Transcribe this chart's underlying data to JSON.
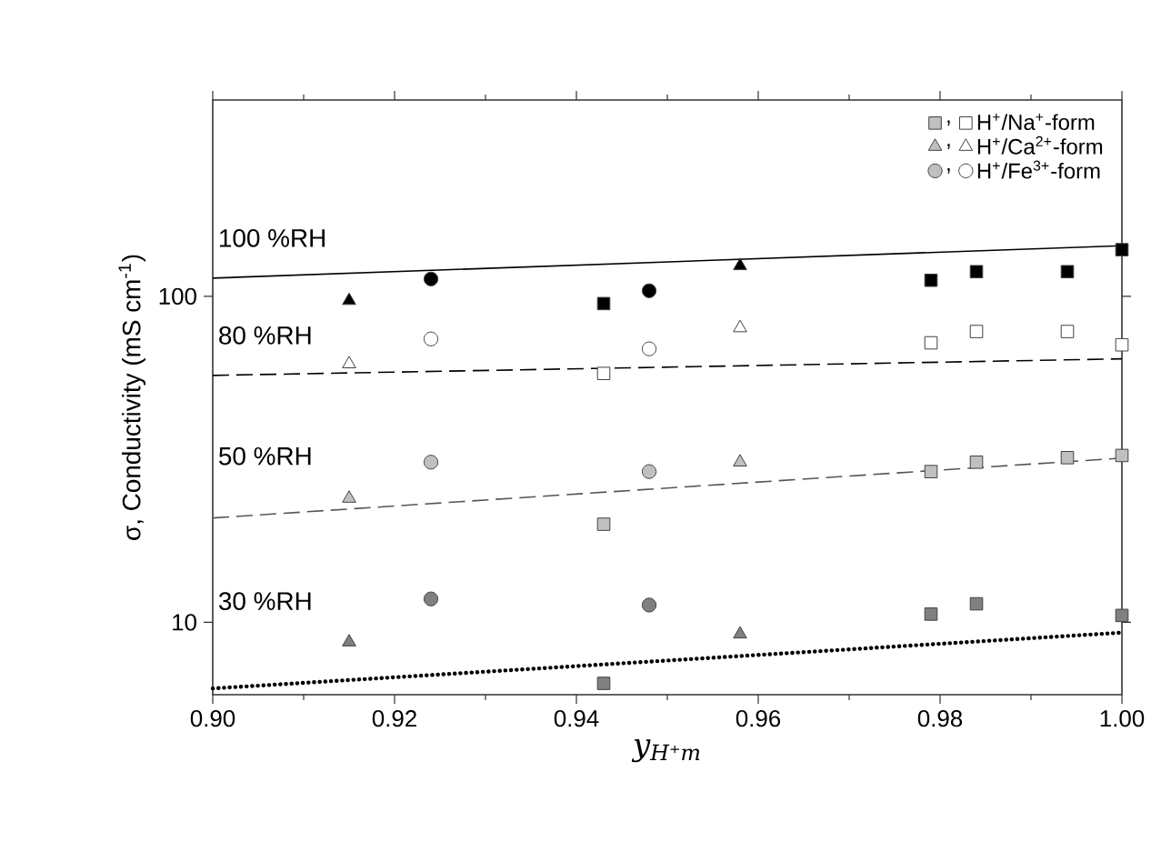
{
  "chart_data": {
    "type": "scatter",
    "xlabel": "y$_{H⁺m}$",
    "ylabel": "σ, Conductivity (mS cm$^{-1}$)",
    "xlim": [
      0.9,
      1.0
    ],
    "ylim": [
      6,
      400
    ],
    "log": "y",
    "legend": "top right",
    "grid": false,
    "xticks": [
      {
        "value": 0.9,
        "label": "0.90"
      },
      {
        "value": 0.92,
        "label": "0.92"
      },
      {
        "value": 0.94,
        "label": "0.94"
      },
      {
        "value": 0.96,
        "label": "0.96"
      },
      {
        "value": 0.98,
        "label": "0.98"
      },
      {
        "value": 1.0,
        "label": "1.00"
      }
    ],
    "yticks": [
      10,
      100
    ],
    "annotations": [
      "100 %RH",
      "80 %RH",
      "50 %RH",
      "30 %RH"
    ],
    "series": [
      {
        "color": "#000000",
        "marker": "square",
        "x": [
          0.943,
          0.979,
          0.984,
          0.994,
          1.0
        ],
        "values": [
          95,
          112,
          119,
          119,
          139
        ]
      },
      {
        "name": ",",
        "color": "#c0c0c0",
        "marker": "square",
        "x": [
          0.943,
          0.979,
          0.984,
          0.994,
          1.0
        ],
        "values": [
          20,
          29,
          31,
          32,
          32.5
        ]
      },
      {
        "name": "H$^{+}$/Na$^{+}$-form",
        "color": "#ffffff",
        "marker": "square",
        "x": [
          0.943,
          0.979,
          0.984,
          0.994,
          1.0
        ],
        "values": [
          58,
          72,
          78,
          78,
          71
        ]
      },
      {
        "color": "#808080",
        "marker": "square",
        "x": [
          0.943,
          0.979,
          0.984,
          1.0
        ],
        "values": [
          6.5,
          10.6,
          11.4,
          10.5
        ]
      },
      {
        "color": "#000000",
        "marker": "triangle",
        "x": [
          0.915,
          0.958
        ],
        "values": [
          97,
          124
        ]
      },
      {
        "name": ",",
        "color": "#c0c0c0",
        "marker": "triangle",
        "x": [
          0.915,
          0.958
        ],
        "values": [
          24,
          31
        ]
      },
      {
        "name": "H$^{+}$/Ca$^{2+}$-form",
        "color": "#ffffff",
        "marker": "triangle",
        "x": [
          0.915,
          0.958
        ],
        "values": [
          62,
          80
        ]
      },
      {
        "color": "#808080",
        "marker": "triangle",
        "x": [
          0.915,
          0.958
        ],
        "values": [
          8.7,
          9.2
        ]
      },
      {
        "color": "#000000",
        "marker": "circle",
        "x": [
          0.924,
          0.948
        ],
        "values": [
          113,
          104
        ]
      },
      {
        "name": ",",
        "color": "#c0c0c0",
        "marker": "circle",
        "x": [
          0.924,
          0.948
        ],
        "values": [
          31,
          29
        ]
      },
      {
        "name": "H$^{+}$/Fe$^{3+}$-form",
        "color": "#ffffff",
        "marker": "circle",
        "x": [
          0.924,
          0.948
        ],
        "values": [
          74,
          69
        ]
      },
      {
        "color": "#808080",
        "marker": "circle",
        "x": [
          0.924,
          0.948
        ],
        "values": [
          11.8,
          11.3
        ]
      },
      {
        "type": "line",
        "color": "#000000",
        "line_style": "solid",
        "marker": "none",
        "x": [
          0.9,
          1.0
        ],
        "values": [
          113.7,
          143
        ]
      },
      {
        "type": "line",
        "color": "#000000",
        "line_style": "dashed",
        "marker": "none",
        "x": [
          0.9,
          1.0
        ],
        "values": [
          57.2,
          64.3
        ]
      },
      {
        "type": "line",
        "color": "#555555",
        "line_style": "dashed",
        "marker": "none",
        "x": [
          0.9,
          1.0
        ],
        "values": [
          20.9,
          31.9
        ]
      },
      {
        "type": "line",
        "color": "#000000",
        "line_style": "dotted",
        "marker": "none",
        "x": [
          0.9,
          1.0
        ],
        "values": [
          6.27,
          9.3
        ]
      }
    ]
  }
}
